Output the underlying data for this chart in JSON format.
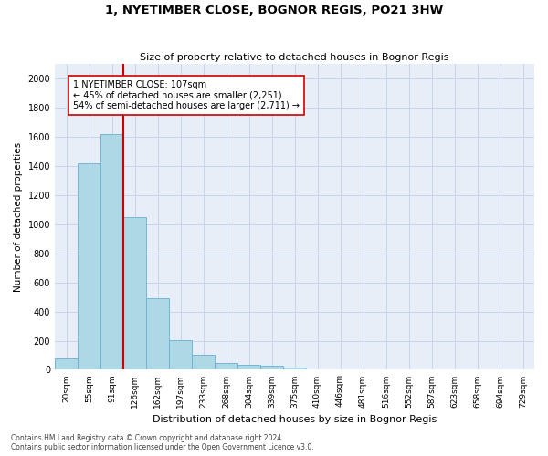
{
  "title": "1, NYETIMBER CLOSE, BOGNOR REGIS, PO21 3HW",
  "subtitle": "Size of property relative to detached houses in Bognor Regis",
  "xlabel": "Distribution of detached houses by size in Bognor Regis",
  "ylabel": "Number of detached properties",
  "bar_values": [
    80,
    1420,
    1620,
    1050,
    490,
    205,
    105,
    48,
    35,
    25,
    15,
    0,
    0,
    0,
    0,
    0,
    0,
    0,
    0,
    0,
    0
  ],
  "bin_labels": [
    "20sqm",
    "55sqm",
    "91sqm",
    "126sqm",
    "162sqm",
    "197sqm",
    "233sqm",
    "268sqm",
    "304sqm",
    "339sqm",
    "375sqm",
    "410sqm",
    "446sqm",
    "481sqm",
    "516sqm",
    "552sqm",
    "587sqm",
    "623sqm",
    "658sqm",
    "694sqm",
    "729sqm"
  ],
  "bar_color": "#add8e6",
  "bar_edge_color": "#6baed6",
  "vline_x": 2.5,
  "vline_color": "#cc0000",
  "annotation_text": "1 NYETIMBER CLOSE: 107sqm\n← 45% of detached houses are smaller (2,251)\n54% of semi-detached houses are larger (2,711) →",
  "annotation_box_color": "#ffffff",
  "annotation_box_edge": "#cc0000",
  "ylim": [
    0,
    2100
  ],
  "yticks": [
    0,
    200,
    400,
    600,
    800,
    1000,
    1200,
    1400,
    1600,
    1800,
    2000
  ],
  "grid_color": "#c8d4e8",
  "bg_color": "#e8eef8",
  "footer_line1": "Contains HM Land Registry data © Crown copyright and database right 2024.",
  "footer_line2": "Contains public sector information licensed under the Open Government Licence v3.0."
}
